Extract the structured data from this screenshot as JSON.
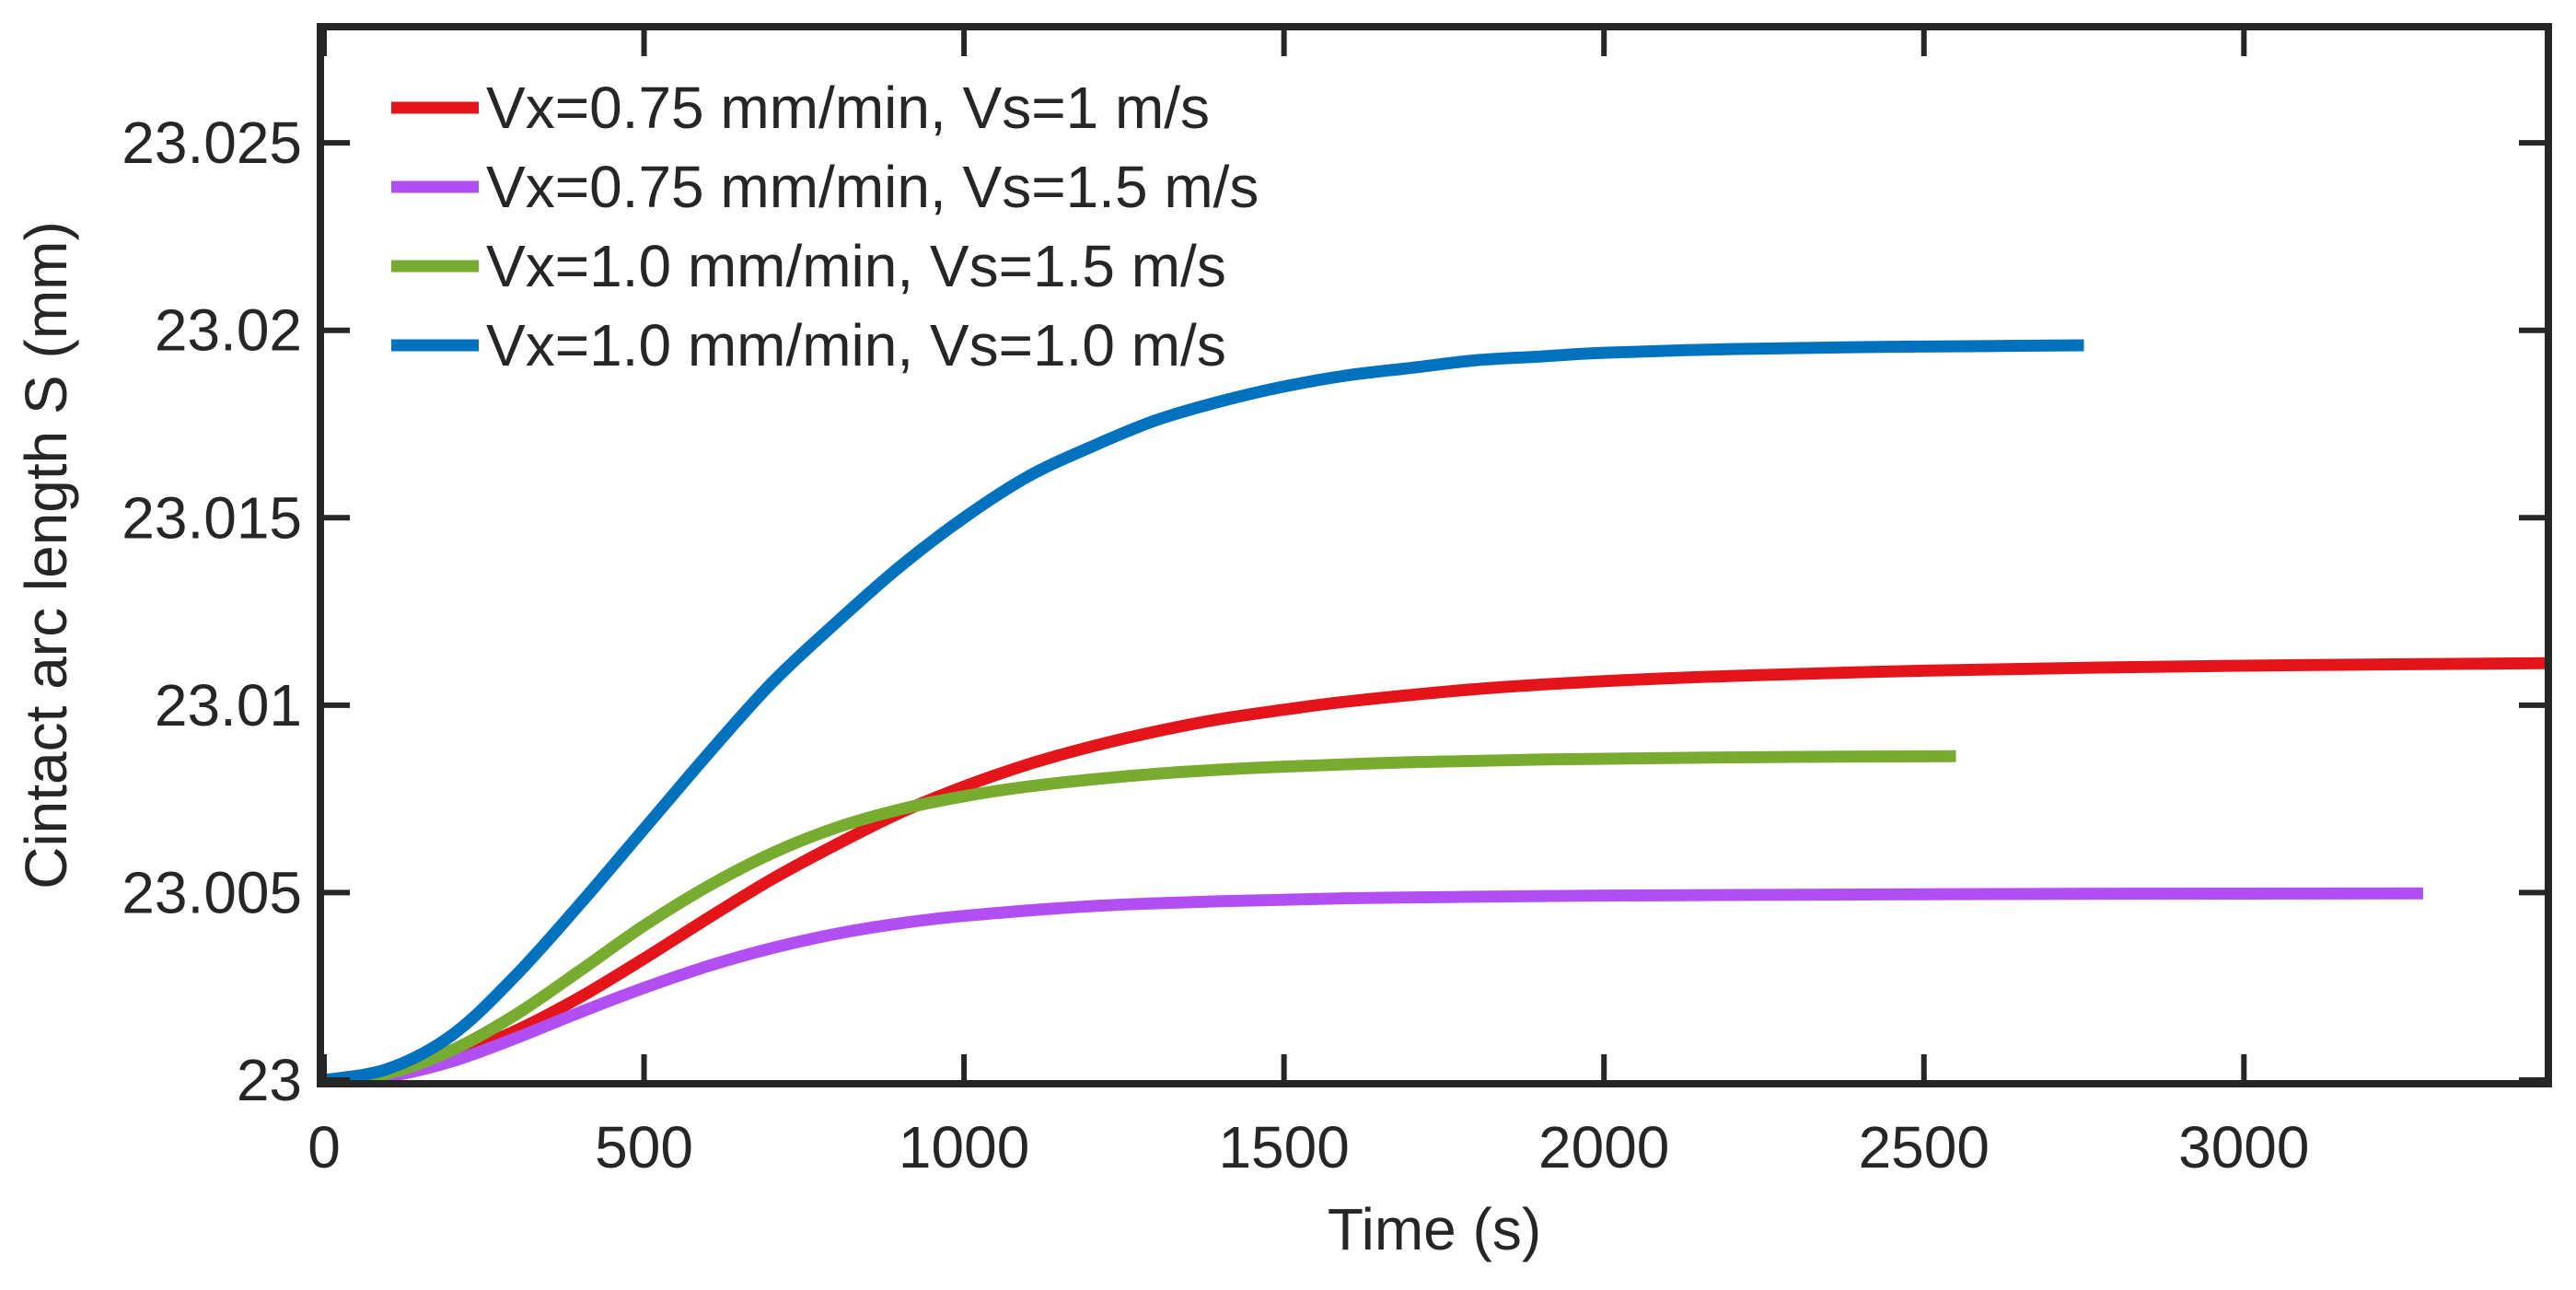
{
  "chart_data": {
    "type": "line",
    "title": "",
    "xlabel": "Time (s)",
    "ylabel": "Cintact arc length S (mm)",
    "xlim": [
      0,
      3470
    ],
    "ylim": [
      23,
      23.028
    ],
    "xticks": [
      0,
      500,
      1000,
      1500,
      2000,
      2500,
      3000
    ],
    "xtick_labels": [
      "0",
      "500",
      "1000",
      "1500",
      "2000",
      "2500",
      "3000"
    ],
    "yticks": [
      23,
      23.005,
      23.01,
      23.015,
      23.02,
      23.025
    ],
    "ytick_labels": [
      "23",
      "23.005",
      "23.01",
      "23.015",
      "23.02",
      "23.025"
    ],
    "grid": false,
    "legend_position": "top-left",
    "series": [
      {
        "name": "Vx=0.75 mm/min, Vs=1 m/s",
        "color": "#e3151a",
        "x": [
          0,
          100,
          200,
          300,
          400,
          500,
          600,
          700,
          800,
          900,
          1000,
          1100,
          1200,
          1300,
          1400,
          1500,
          1600,
          1800,
          2000,
          2200,
          2500,
          2800,
          3100,
          3470
        ],
        "y": [
          23.0,
          23.00016,
          23.00062,
          23.00132,
          23.00221,
          23.00324,
          23.00432,
          23.00536,
          23.00628,
          23.00713,
          23.00783,
          23.00842,
          23.0089,
          23.0093,
          23.00963,
          23.00988,
          23.0101,
          23.01043,
          23.01064,
          23.01078,
          23.01092,
          23.01101,
          23.01107,
          23.01112
        ]
      },
      {
        "name": "Vx=0.75 mm/min, Vs=1.5 m/s",
        "color": "#b24ff2",
        "x": [
          0,
          100,
          200,
          300,
          400,
          500,
          600,
          700,
          800,
          900,
          1000,
          1200,
          1400,
          1600,
          1800,
          2000,
          2400,
          2800,
          3280
        ],
        "y": [
          23.0,
          23.0001,
          23.0005,
          23.00112,
          23.00181,
          23.00246,
          23.00304,
          23.00352,
          23.0039,
          23.00418,
          23.00438,
          23.00464,
          23.00477,
          23.00485,
          23.00489,
          23.00492,
          23.00495,
          23.00497,
          23.00498
        ]
      },
      {
        "name": "Vx=1.0 mm/min, Vs=1.5 m/s",
        "color": "#77ac30",
        "x": [
          0,
          100,
          200,
          300,
          400,
          500,
          600,
          700,
          800,
          900,
          1000,
          1100,
          1200,
          1300,
          1400,
          1500,
          1700,
          1900,
          2100,
          2300,
          2550
        ],
        "y": [
          23.0,
          23.00018,
          23.0008,
          23.00175,
          23.00292,
          23.00412,
          23.00517,
          23.00605,
          23.00673,
          23.00722,
          23.00757,
          23.00783,
          23.00802,
          23.00817,
          23.00828,
          23.00836,
          23.00848,
          23.00855,
          23.00859,
          23.00862,
          23.00864
        ]
      },
      {
        "name": "Vx=1.0 mm/min, Vs=1.0 m/s",
        "color": "#0072bd",
        "x": [
          0,
          100,
          200,
          300,
          400,
          500,
          600,
          700,
          800,
          900,
          1000,
          1100,
          1200,
          1300,
          1400,
          1500,
          1600,
          1700,
          1800,
          1900,
          2000,
          2200,
          2400,
          2600,
          2750
        ],
        "y": [
          23.0,
          23.0003,
          23.0012,
          23.0028,
          23.0047,
          23.0067,
          23.0087,
          23.0106,
          23.0122,
          23.0137,
          23.015,
          23.0161,
          23.0169,
          23.0176,
          23.0181,
          23.0185,
          23.0188,
          23.019,
          23.0192,
          23.0193,
          23.0194,
          23.0195,
          23.01955,
          23.01958,
          23.0196
        ]
      }
    ]
  }
}
